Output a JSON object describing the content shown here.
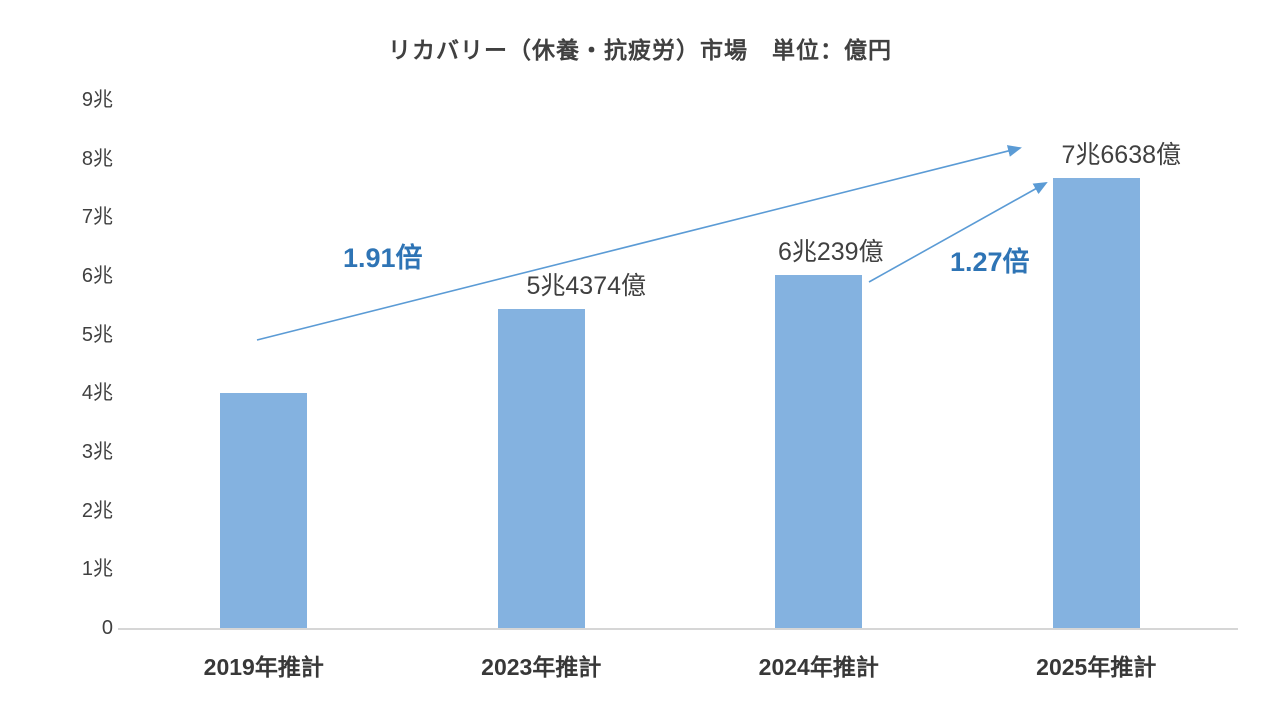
{
  "chart_data": {
    "type": "bar",
    "title": "リカバリー（休養・抗疲労）市場　単位：億円",
    "unit": "億円",
    "categories": [
      "2019年推計",
      "2023年推計",
      "2024年推計",
      "2025年推計"
    ],
    "values": [
      40124,
      54374,
      60239,
      76638
    ],
    "bar_labels": [
      "",
      "5兆4374億",
      "6兆239億",
      "7兆6638億"
    ],
    "ylim": [
      0,
      90000
    ],
    "y_ticks": [
      "9兆",
      "8兆",
      "7兆",
      "6兆",
      "5兆",
      "4兆",
      "3兆",
      "2兆",
      "1兆",
      "0"
    ],
    "y_tick_values": [
      90000,
      80000,
      70000,
      60000,
      50000,
      40000,
      30000,
      20000,
      10000,
      0
    ],
    "grid": false,
    "legend": false,
    "annotations": [
      {
        "label": "1.91倍",
        "from": "2019年推計",
        "to": "2025年推計"
      },
      {
        "label": "1.27倍",
        "from": "2024年推計",
        "to": "2025年推計"
      }
    ],
    "colors": {
      "bar": "#84B2E0",
      "arrow": "#5B9BD5",
      "accent_text": "#2E74B5",
      "text": "#404040",
      "axis_line": "#D6D6D6"
    }
  }
}
